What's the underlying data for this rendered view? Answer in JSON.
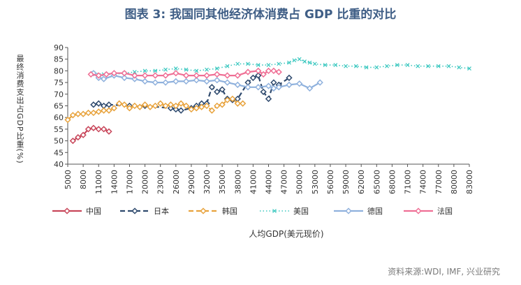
{
  "title": "图表 3:  我国同其他经济体消费占 GDP 比重的对比",
  "source": "资料来源:WDI, IMF, 兴业研究",
  "chart_data": {
    "type": "line",
    "xlabel": "人均GDP(美元现价)",
    "ylabel": "最终消费支出占GDP比重(%)",
    "xlim": [
      5000,
      83000
    ],
    "ylim": [
      40,
      90
    ],
    "xticks": [
      5000,
      8000,
      11000,
      14000,
      17000,
      20000,
      23000,
      26000,
      29000,
      32000,
      35000,
      38000,
      41000,
      44000,
      47000,
      50000,
      53000,
      56000,
      59000,
      62000,
      65000,
      68000,
      71000,
      74000,
      77000,
      80000,
      83000
    ],
    "yticks": [
      40,
      45,
      50,
      55,
      60,
      65,
      70,
      75,
      80,
      85,
      90
    ],
    "grid": false,
    "legend_position": "bottom",
    "series": [
      {
        "name": "中国",
        "color": "#c8465a",
        "style": "solid",
        "marker": "diamond",
        "x": [
          6000,
          7000,
          8000,
          9000,
          10000,
          11000,
          12000,
          13000
        ],
        "y": [
          50,
          51.5,
          52.5,
          55,
          55.5,
          55,
          55,
          54
        ]
      },
      {
        "name": "日本",
        "color": "#2f4a6e",
        "style": "dashed",
        "marker": "diamond",
        "x": [
          10000,
          11000,
          12000,
          13000,
          17000,
          20000,
          25000,
          26000,
          27000,
          29000,
          30000,
          31000,
          32000,
          33000,
          34000,
          35000,
          36000,
          37000,
          38000,
          40000,
          41000,
          42000,
          43000,
          44000,
          45000,
          46000,
          48000
        ],
        "y": [
          65.5,
          66,
          65,
          65.5,
          65,
          65,
          64,
          63.5,
          63,
          64,
          65,
          66,
          66,
          73,
          71,
          72,
          68,
          67.5,
          68,
          75,
          77,
          78,
          71,
          68,
          75,
          74,
          77
        ]
      },
      {
        "name": "韩国",
        "color": "#e8a33d",
        "style": "dashed",
        "marker": "diamond",
        "x": [
          5000,
          6000,
          7000,
          8000,
          9000,
          10000,
          11000,
          12000,
          13000,
          14000,
          15000,
          16000,
          17000,
          18000,
          19000,
          20000,
          21000,
          22000,
          23000,
          24000,
          25000,
          26000,
          27000,
          28000,
          29000,
          30000,
          31000,
          32000,
          33000,
          34000,
          35000,
          36000,
          37000,
          38000,
          39000
        ],
        "y": [
          59,
          61,
          61.5,
          61.5,
          62,
          62,
          62.5,
          63,
          63,
          64,
          66,
          65.5,
          64,
          65,
          64.5,
          65.5,
          64.5,
          65,
          66,
          65,
          65.5,
          65,
          66,
          65,
          63.5,
          64,
          64.5,
          65,
          63,
          65,
          65.5,
          67.5,
          68,
          66,
          66
        ]
      },
      {
        "name": "美国",
        "color": "#3cc8c0",
        "style": "dotted",
        "marker": "x",
        "x": [
          10000,
          12000,
          14000,
          16000,
          18000,
          20000,
          22000,
          24000,
          26000,
          28000,
          30000,
          32000,
          34000,
          36000,
          38000,
          40000,
          42000,
          44000,
          46000,
          48000,
          49000,
          50000,
          51000,
          52000,
          53000,
          55000,
          57000,
          59000,
          61000,
          63000,
          65000,
          67000,
          69000,
          71000,
          73000,
          75000,
          77000,
          79000,
          81000,
          83000
        ],
        "y": [
          79,
          78.5,
          78.5,
          79,
          79.5,
          80,
          80,
          80.5,
          81,
          80.5,
          80,
          80.5,
          81,
          82,
          83,
          83,
          82.5,
          82.5,
          83,
          83.5,
          84.5,
          85,
          84,
          83.5,
          83,
          82.5,
          82.5,
          82,
          82,
          81.5,
          81.5,
          82,
          82.5,
          82.5,
          82,
          82,
          82,
          82,
          81.5,
          81
        ]
      },
      {
        "name": "德国",
        "color": "#8fb1dd",
        "style": "solid",
        "marker": "diamond",
        "x": [
          10000,
          11000,
          12000,
          14000,
          16000,
          18000,
          20000,
          22000,
          24000,
          26000,
          28000,
          30000,
          32000,
          34000,
          36000,
          38000,
          40000,
          42000,
          44000,
          45000,
          46000,
          48000,
          50000,
          52000,
          54000
        ],
        "y": [
          79,
          77,
          76.5,
          78,
          77,
          76.5,
          75.5,
          75,
          75,
          75.5,
          75.5,
          76,
          75.5,
          76,
          75,
          74,
          73,
          73,
          73.5,
          72.5,
          73,
          74,
          74.5,
          72.5,
          75
        ]
      },
      {
        "name": "法国",
        "color": "#ef6f95",
        "style": "solid",
        "marker": "diamond",
        "x": [
          9500,
          11000,
          12500,
          14000,
          16000,
          18000,
          20000,
          22000,
          24000,
          26000,
          28000,
          30000,
          32000,
          34000,
          36000,
          38000,
          40000,
          42000,
          43000,
          44000,
          45000,
          46000
        ],
        "y": [
          78.5,
          78,
          78.5,
          79,
          79,
          78,
          78,
          78,
          78,
          79,
          78,
          78,
          78,
          78.5,
          78,
          78,
          79.5,
          80,
          78.5,
          80,
          80,
          79.5
        ]
      }
    ]
  }
}
